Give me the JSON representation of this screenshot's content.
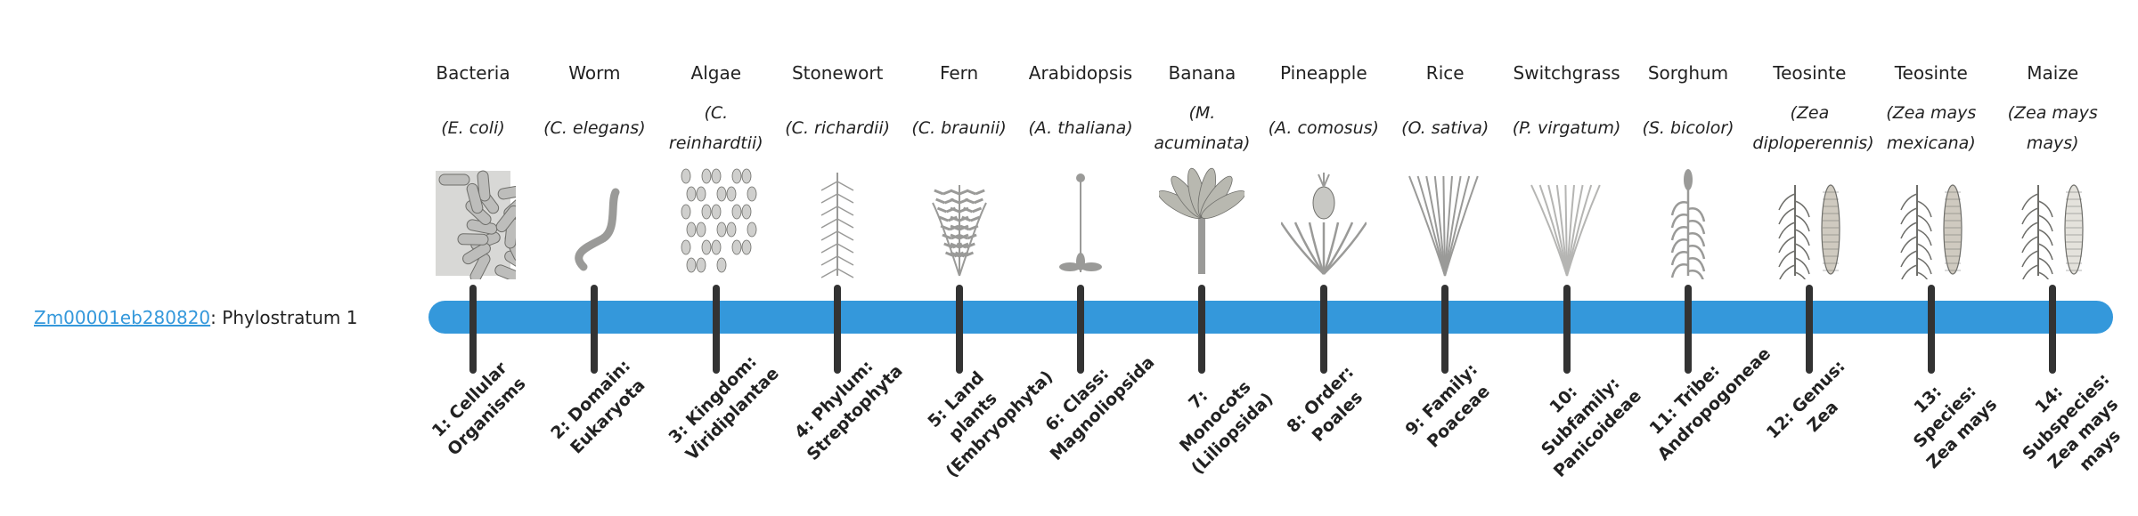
{
  "gene": {
    "id": "Zm00001eb280820",
    "suffix": ": Phylostratum 1"
  },
  "colors": {
    "bar": "#3498db",
    "tick": "#333333",
    "link": "#3498db"
  },
  "organisms": [
    {
      "common": "Bacteria",
      "species": "(E. coli)",
      "icon": "bacteria-icon"
    },
    {
      "common": "Worm",
      "species": "(C. elegans)",
      "icon": "worm-icon"
    },
    {
      "common": "Algae",
      "species": "(C. reinhardtii)",
      "icon": "algae-icon"
    },
    {
      "common": "Stonewort",
      "species": "(C. richardii)",
      "icon": "stonewort-icon"
    },
    {
      "common": "Fern",
      "species": "(C. braunii)",
      "icon": "fern-icon"
    },
    {
      "common": "Arabidopsis",
      "species": "(A. thaliana)",
      "icon": "arabidopsis-icon"
    },
    {
      "common": "Banana",
      "species": "(M. acuminata)",
      "icon": "banana-icon"
    },
    {
      "common": "Pineapple",
      "species": "(A. comosus)",
      "icon": "pineapple-icon"
    },
    {
      "common": "Rice",
      "species": "(O. sativa)",
      "icon": "rice-icon"
    },
    {
      "common": "Switchgrass",
      "species": "(P. virgatum)",
      "icon": "switchgrass-icon"
    },
    {
      "common": "Sorghum",
      "species": "(S. bicolor)",
      "icon": "sorghum-icon"
    },
    {
      "common": "Teosinte",
      "species": "(Zea diploperennis)",
      "icon": "teosinte-icon"
    },
    {
      "common": "Teosinte",
      "species": "(Zea mays mexicana)",
      "icon": "teosinte-icon"
    },
    {
      "common": "Maize",
      "species": "(Zea mays mays)",
      "icon": "maize-icon"
    }
  ],
  "strata": [
    "1: Cellular Organisms",
    "2: Domain: Eukaryota",
    "3: Kingdom: Viridiplantae",
    "4: Phylum: Streptophyta",
    "5: Land plants (Embryophyta)",
    "6: Class: Magnoliopsida",
    "7: Monocots (Liliopsida)",
    "8: Order: Poales",
    "9: Family: Poaceae",
    "10: Subfamily: Panicoideae",
    "11: Tribe: Andropogoneae",
    "12: Genus: Zea",
    "13: Species: Zea mays",
    "14: Subspecies: Zea mays mays"
  ]
}
